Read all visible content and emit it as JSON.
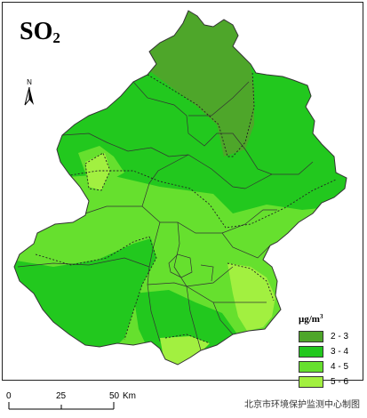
{
  "map": {
    "title_main": "SO",
    "title_sub": "2",
    "north_label": "N"
  },
  "legend": {
    "title_main": "μg/m",
    "title_sup": "3",
    "items": [
      {
        "label": "2 - 3",
        "color": "#4ea62a"
      },
      {
        "label": "3 - 4",
        "color": "#22c81e"
      },
      {
        "label": "4 - 5",
        "color": "#66e02e"
      },
      {
        "label": "5 - 6",
        "color": "#a2f040"
      }
    ]
  },
  "scale": {
    "ticks": [
      "0",
      "25",
      "50"
    ],
    "unit": "Km"
  },
  "source": "北京市环境保护监测中心制图"
}
